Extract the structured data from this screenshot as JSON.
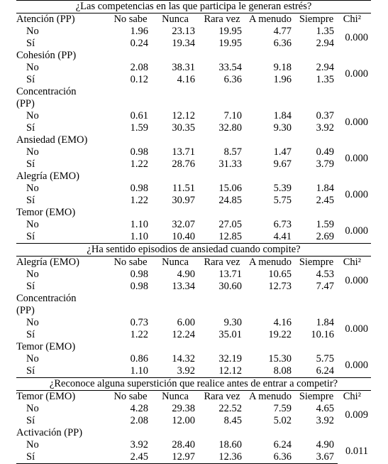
{
  "headers": {
    "label": "",
    "cols": [
      "No sabe",
      "Nunca",
      "Rara vez",
      "A menudo",
      "Siempre"
    ],
    "chi": "Chi²"
  },
  "sections": [
    {
      "question": "¿Las competencias en las que participa le generan estrés?",
      "groups": [
        {
          "label": "Atención (PP)",
          "label2": "",
          "chi": "0.000",
          "rows": [
            {
              "label": "No",
              "values": [
                "1.96",
                "23.13",
                "19.95",
                "4.77",
                "1.35"
              ]
            },
            {
              "label": "Sí",
              "values": [
                "0.24",
                "19.34",
                "19.95",
                "6.36",
                "2.94"
              ]
            }
          ]
        },
        {
          "label": "Cohesión (PP)",
          "label2": "",
          "chi": "0.000",
          "rows": [
            {
              "label": "No",
              "values": [
                "2.08",
                "38.31",
                "33.54",
                "9.18",
                "2.94"
              ]
            },
            {
              "label": "Sí",
              "values": [
                "0.12",
                "4.16",
                "6.36",
                "1.96",
                "1.35"
              ]
            }
          ]
        },
        {
          "label": "Concentración",
          "label2": "(PP)",
          "chi": "0.000",
          "rows": [
            {
              "label": "No",
              "values": [
                "0.61",
                "12.12",
                "7.10",
                "1.84",
                "0.37"
              ]
            },
            {
              "label": "Sí",
              "values": [
                "1.59",
                "30.35",
                "32.80",
                "9.30",
                "3.92"
              ]
            }
          ]
        },
        {
          "label": "Ansiedad (EMO)",
          "label2": "",
          "chi": "0.000",
          "rows": [
            {
              "label": "No",
              "values": [
                "0.98",
                "13.71",
                "8.57",
                "1.47",
                "0.49"
              ]
            },
            {
              "label": "Sí",
              "values": [
                "1.22",
                "28.76",
                "31.33",
                "9.67",
                "3.79"
              ]
            }
          ]
        },
        {
          "label": "Alegría (EMO)",
          "label2": "",
          "chi": "0.000",
          "rows": [
            {
              "label": "No",
              "values": [
                "0.98",
                "11.51",
                "15.06",
                "5.39",
                "1.84"
              ]
            },
            {
              "label": "Sí",
              "values": [
                "1.22",
                "30.97",
                "24.85",
                "5.75",
                "2.45"
              ]
            }
          ]
        },
        {
          "label": "Temor (EMO)",
          "label2": "",
          "chi": "0.000",
          "rows": [
            {
              "label": "No",
              "values": [
                "1.10",
                "32.07",
                "27.05",
                "6.73",
                "1.59"
              ]
            },
            {
              "label": "Sí",
              "values": [
                "1.10",
                "10.40",
                "12.85",
                "4.41",
                "2.69"
              ]
            }
          ]
        }
      ]
    },
    {
      "question": "¿Ha sentido episodios de ansiedad cuando compite?",
      "groups": [
        {
          "label": "Alegría (EMO)",
          "label2": "",
          "chi": "0.000",
          "header_inline": true,
          "rows": [
            {
              "label": "No",
              "values": [
                "0.98",
                "4.90",
                "13.71",
                "10.65",
                "4.53"
              ]
            },
            {
              "label": "Sí",
              "values": [
                "0.98",
                "13.34",
                "30.60",
                "12.73",
                "7.47"
              ]
            }
          ]
        },
        {
          "label": "Concentración",
          "label2": "(PP)",
          "chi": "0.000",
          "rows": [
            {
              "label": "No",
              "values": [
                "0.73",
                "6.00",
                "9.30",
                "4.16",
                "1.84"
              ]
            },
            {
              "label": "Sí",
              "values": [
                "1.22",
                "12.24",
                "35.01",
                "19.22",
                "10.16"
              ]
            }
          ]
        },
        {
          "label": "Temor (EMO)",
          "label2": "",
          "chi": "0.000",
          "rows": [
            {
              "label": "No",
              "values": [
                "0.86",
                "14.32",
                "32.19",
                "15.30",
                "5.75"
              ]
            },
            {
              "label": "Sí",
              "values": [
                "1.10",
                "3.92",
                "12.12",
                "8.08",
                "6.24"
              ]
            }
          ]
        }
      ]
    },
    {
      "question": "¿Reconoce alguna superstición que realice antes de entrar a competir?",
      "groups": [
        {
          "label": "Temor (EMO)",
          "label2": "",
          "chi": "0.009",
          "header_inline": true,
          "rows": [
            {
              "label": "No",
              "values": [
                "4.28",
                "29.38",
                "22.52",
                "7.59",
                "4.65"
              ]
            },
            {
              "label": "Sí",
              "values": [
                "2.08",
                "12.00",
                "8.45",
                "5.02",
                "3.92"
              ]
            }
          ]
        },
        {
          "label": "Activación (PP)",
          "label2": "",
          "chi": "0.011",
          "rows": [
            {
              "label": "No",
              "values": [
                "3.92",
                "28.40",
                "18.60",
                "6.24",
                "4.90"
              ]
            },
            {
              "label": "Sí",
              "values": [
                "2.45",
                "12.97",
                "12.36",
                "6.36",
                "3.67"
              ]
            }
          ]
        }
      ]
    }
  ]
}
